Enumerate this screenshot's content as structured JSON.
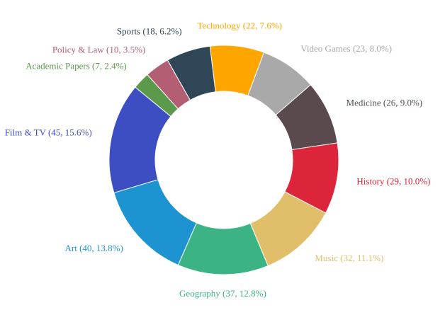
{
  "chart_data": {
    "type": "pie",
    "donut": true,
    "title": "",
    "slices": [
      {
        "label": "Technology",
        "value": 22,
        "percent": "7.6%",
        "display": "Technology (22, 7.6%)",
        "color": "#ffa500"
      },
      {
        "label": "Video Games",
        "value": 23,
        "percent": "8.0%",
        "display": "Video Games (23, 8.0%)",
        "color": "#a9a9a9"
      },
      {
        "label": "Medicine",
        "value": 26,
        "percent": "9.0%",
        "display": "Medicine (26, 9.0%)",
        "color": "#5b4a4d"
      },
      {
        "label": "History",
        "value": 29,
        "percent": "10.0%",
        "display": "History (29, 10.0%)",
        "color": "#dc253b"
      },
      {
        "label": "Music",
        "value": 32,
        "percent": "11.1%",
        "display": "Music (32, 11.1%)",
        "color": "#e1be6a"
      },
      {
        "label": "Geography",
        "value": 37,
        "percent": "12.8%",
        "display": "Geography (37, 12.8%)",
        "color": "#3bb385"
      },
      {
        "label": "Art",
        "value": 40,
        "percent": "13.8%",
        "display": "Art (40, 13.8%)",
        "color": "#1e93d1"
      },
      {
        "label": "Film & TV",
        "value": 45,
        "percent": "15.6%",
        "display": "Film & TV (45, 15.6%)",
        "color": "#3c4ec2"
      },
      {
        "label": "Academic Papers",
        "value": 7,
        "percent": "2.4%",
        "display": "Academic Papers (7, 2.4%)",
        "color": "#5b9a4b"
      },
      {
        "label": "Policy & Law",
        "value": 10,
        "percent": "3.5%",
        "display": "Policy & Law (10, 3.5%)",
        "color": "#b45e73"
      },
      {
        "label": "Sports",
        "value": 18,
        "percent": "6.2%",
        "display": "Sports (18, 6.2%)",
        "color": "#2f4656"
      }
    ]
  }
}
